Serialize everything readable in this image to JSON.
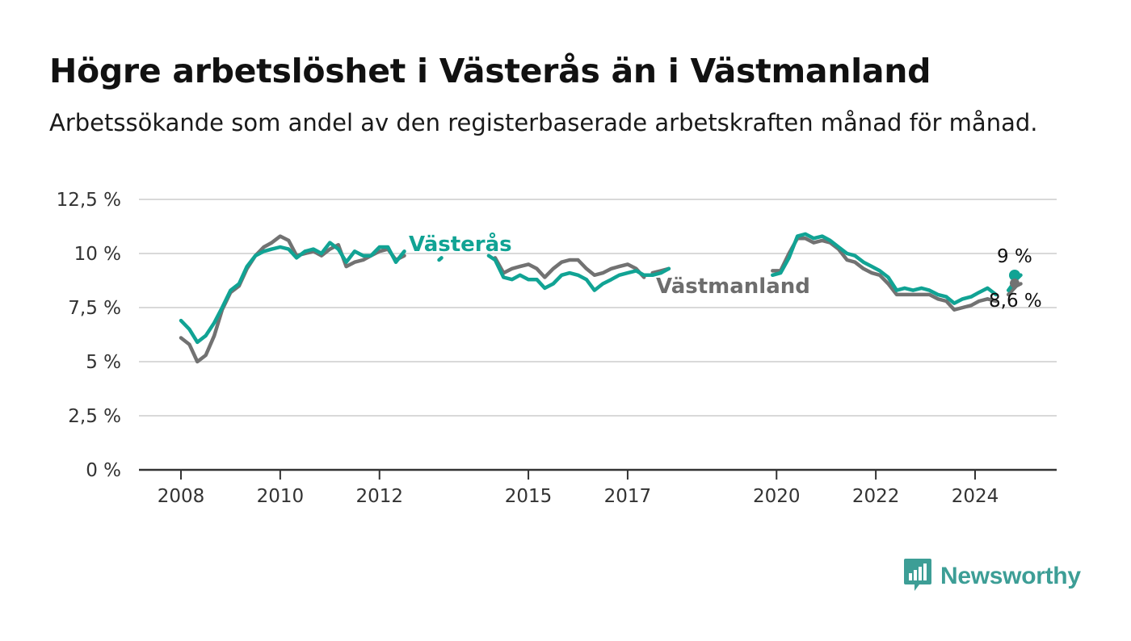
{
  "header": {
    "title": "Högre arbetslöshet i Västerås än i Västmanland",
    "subtitle": "Arbetssökande som andel av den registerbaserade arbetskraften månad för månad."
  },
  "branding": {
    "logo_text": "Newsworthy",
    "logo_icon": "bar-chart-speech-icon"
  },
  "colors": {
    "vasteras": "#11a394",
    "vastmanland": "#727272",
    "grid": "#d9d9d9",
    "axis": "#333333",
    "logo": "#3d9e96"
  },
  "chart_data": {
    "type": "line",
    "title": "Högre arbetslöshet i Västerås än i Västmanland",
    "subtitle": "Arbetssökande som andel av den registerbaserade arbetskraften månad för månad.",
    "xlabel": "",
    "ylabel": "",
    "xlim": [
      2007.2,
      2026.1
    ],
    "ylim": [
      0,
      12.5
    ],
    "grid": true,
    "y_ticks": [
      {
        "value": 0,
        "label": "0 %"
      },
      {
        "value": 2.5,
        "label": "2,5 %"
      },
      {
        "value": 5,
        "label": "5 %"
      },
      {
        "value": 7.5,
        "label": "7,5 %"
      },
      {
        "value": 10,
        "label": "10 %"
      },
      {
        "value": 12.5,
        "label": "12,5 %"
      }
    ],
    "x_ticks": [
      {
        "value": 2008,
        "label": "2008"
      },
      {
        "value": 2010,
        "label": "2010"
      },
      {
        "value": 2012,
        "label": "2012"
      },
      {
        "value": 2015,
        "label": "2015"
      },
      {
        "value": 2017,
        "label": "2017"
      },
      {
        "value": 2020,
        "label": "2020"
      },
      {
        "value": 2022,
        "label": "2022"
      },
      {
        "value": 2024,
        "label": "2024"
      }
    ],
    "series": [
      {
        "name": "Västmanland",
        "label": "Västmanland",
        "end_label": "8,6 %",
        "segments": [
          [
            [
              2008.0,
              6.1
            ],
            [
              2008.17,
              5.8
            ],
            [
              2008.33,
              5.0
            ],
            [
              2008.5,
              5.3
            ],
            [
              2008.67,
              6.2
            ],
            [
              2008.83,
              7.4
            ],
            [
              2009.0,
              8.2
            ],
            [
              2009.17,
              8.5
            ],
            [
              2009.33,
              9.3
            ],
            [
              2009.5,
              9.9
            ],
            [
              2009.67,
              10.3
            ],
            [
              2009.83,
              10.5
            ],
            [
              2010.0,
              10.8
            ],
            [
              2010.17,
              10.6
            ],
            [
              2010.33,
              9.9
            ],
            [
              2010.5,
              10.0
            ],
            [
              2010.67,
              10.1
            ],
            [
              2010.83,
              9.9
            ],
            [
              2011.0,
              10.2
            ],
            [
              2011.17,
              10.4
            ],
            [
              2011.33,
              9.4
            ],
            [
              2011.5,
              9.6
            ],
            [
              2011.67,
              9.7
            ],
            [
              2011.83,
              9.9
            ],
            [
              2012.0,
              10.1
            ],
            [
              2012.17,
              10.2
            ],
            [
              2012.33,
              9.7
            ],
            [
              2012.5,
              9.9
            ]
          ],
          [
            [
              2014.33,
              9.8
            ],
            [
              2014.5,
              9.1
            ],
            [
              2014.67,
              9.3
            ],
            [
              2014.83,
              9.4
            ],
            [
              2015.0,
              9.5
            ],
            [
              2015.17,
              9.3
            ],
            [
              2015.33,
              8.9
            ],
            [
              2015.5,
              9.3
            ],
            [
              2015.67,
              9.6
            ],
            [
              2015.83,
              9.7
            ],
            [
              2016.0,
              9.7
            ],
            [
              2016.17,
              9.3
            ],
            [
              2016.33,
              9.0
            ],
            [
              2016.5,
              9.1
            ],
            [
              2016.67,
              9.3
            ],
            [
              2016.83,
              9.4
            ],
            [
              2017.0,
              9.5
            ],
            [
              2017.17,
              9.3
            ],
            [
              2017.33,
              8.9
            ]
          ],
          [
            [
              2017.5,
              9.1
            ],
            [
              2017.67,
              9.2
            ],
            [
              2017.83,
              9.3
            ]
          ],
          [
            [
              2019.92,
              9.2
            ],
            [
              2020.08,
              9.2
            ],
            [
              2020.25,
              10.0
            ],
            [
              2020.42,
              10.7
            ],
            [
              2020.58,
              10.7
            ],
            [
              2020.75,
              10.5
            ],
            [
              2020.92,
              10.6
            ],
            [
              2021.08,
              10.5
            ],
            [
              2021.25,
              10.2
            ],
            [
              2021.42,
              9.7
            ],
            [
              2021.58,
              9.6
            ],
            [
              2021.75,
              9.3
            ],
            [
              2021.92,
              9.1
            ],
            [
              2022.08,
              9.0
            ],
            [
              2022.25,
              8.6
            ],
            [
              2022.42,
              8.1
            ],
            [
              2022.58,
              8.1
            ],
            [
              2022.75,
              8.1
            ],
            [
              2022.92,
              8.1
            ],
            [
              2023.08,
              8.1
            ],
            [
              2023.25,
              7.9
            ],
            [
              2023.42,
              7.8
            ],
            [
              2023.58,
              7.4
            ],
            [
              2023.75,
              7.5
            ],
            [
              2023.92,
              7.6
            ],
            [
              2024.08,
              7.8
            ],
            [
              2024.25,
              7.9
            ],
            [
              2024.42,
              7.8
            ]
          ],
          [
            [
              2024.67,
              8.1
            ],
            [
              2024.83,
              8.5
            ],
            [
              2024.92,
              8.6
            ]
          ]
        ]
      },
      {
        "name": "Västerås",
        "label": "Västerås",
        "end_label": "9 %",
        "segments": [
          [
            [
              2008.0,
              6.9
            ],
            [
              2008.17,
              6.5
            ],
            [
              2008.33,
              5.9
            ],
            [
              2008.5,
              6.2
            ],
            [
              2008.67,
              6.8
            ],
            [
              2008.83,
              7.5
            ],
            [
              2009.0,
              8.3
            ],
            [
              2009.17,
              8.6
            ],
            [
              2009.33,
              9.4
            ],
            [
              2009.5,
              9.9
            ],
            [
              2009.67,
              10.1
            ],
            [
              2009.83,
              10.2
            ],
            [
              2010.0,
              10.3
            ],
            [
              2010.17,
              10.2
            ],
            [
              2010.33,
              9.8
            ],
            [
              2010.5,
              10.1
            ],
            [
              2010.67,
              10.2
            ],
            [
              2010.83,
              10.0
            ],
            [
              2011.0,
              10.5
            ],
            [
              2011.17,
              10.2
            ],
            [
              2011.33,
              9.6
            ],
            [
              2011.5,
              10.1
            ],
            [
              2011.67,
              9.9
            ],
            [
              2011.83,
              9.9
            ],
            [
              2012.0,
              10.3
            ],
            [
              2012.17,
              10.3
            ],
            [
              2012.33,
              9.6
            ],
            [
              2012.5,
              10.1
            ]
          ],
          [
            [
              2013.2,
              9.7
            ],
            [
              2013.25,
              9.8
            ]
          ],
          [
            [
              2014.2,
              9.9
            ],
            [
              2014.33,
              9.7
            ],
            [
              2014.5,
              8.9
            ],
            [
              2014.67,
              8.8
            ],
            [
              2014.83,
              9.0
            ],
            [
              2015.0,
              8.8
            ],
            [
              2015.17,
              8.8
            ],
            [
              2015.33,
              8.4
            ],
            [
              2015.5,
              8.6
            ],
            [
              2015.67,
              9.0
            ],
            [
              2015.83,
              9.1
            ],
            [
              2016.0,
              9.0
            ],
            [
              2016.17,
              8.8
            ],
            [
              2016.33,
              8.3
            ],
            [
              2016.5,
              8.6
            ],
            [
              2016.67,
              8.8
            ],
            [
              2016.83,
              9.0
            ],
            [
              2017.0,
              9.1
            ],
            [
              2017.17,
              9.2
            ],
            [
              2017.33,
              9.0
            ],
            [
              2017.5,
              9.0
            ],
            [
              2017.67,
              9.1
            ],
            [
              2017.83,
              9.3
            ]
          ],
          [
            [
              2019.92,
              9.0
            ],
            [
              2020.08,
              9.1
            ],
            [
              2020.25,
              9.8
            ],
            [
              2020.42,
              10.8
            ],
            [
              2020.58,
              10.9
            ],
            [
              2020.75,
              10.7
            ],
            [
              2020.92,
              10.8
            ],
            [
              2021.08,
              10.6
            ],
            [
              2021.25,
              10.3
            ],
            [
              2021.42,
              10.0
            ],
            [
              2021.58,
              9.9
            ],
            [
              2021.75,
              9.6
            ],
            [
              2021.92,
              9.4
            ],
            [
              2022.08,
              9.2
            ],
            [
              2022.25,
              8.9
            ],
            [
              2022.42,
              8.3
            ],
            [
              2022.58,
              8.4
            ],
            [
              2022.75,
              8.3
            ],
            [
              2022.92,
              8.4
            ],
            [
              2023.08,
              8.3
            ],
            [
              2023.25,
              8.1
            ],
            [
              2023.42,
              8.0
            ],
            [
              2023.58,
              7.7
            ],
            [
              2023.75,
              7.9
            ],
            [
              2023.92,
              8.0
            ],
            [
              2024.08,
              8.2
            ],
            [
              2024.25,
              8.4
            ],
            [
              2024.42,
              8.1
            ]
          ],
          [
            [
              2024.67,
              8.3
            ],
            [
              2024.83,
              8.8
            ],
            [
              2024.92,
              9.0
            ]
          ]
        ]
      }
    ]
  }
}
